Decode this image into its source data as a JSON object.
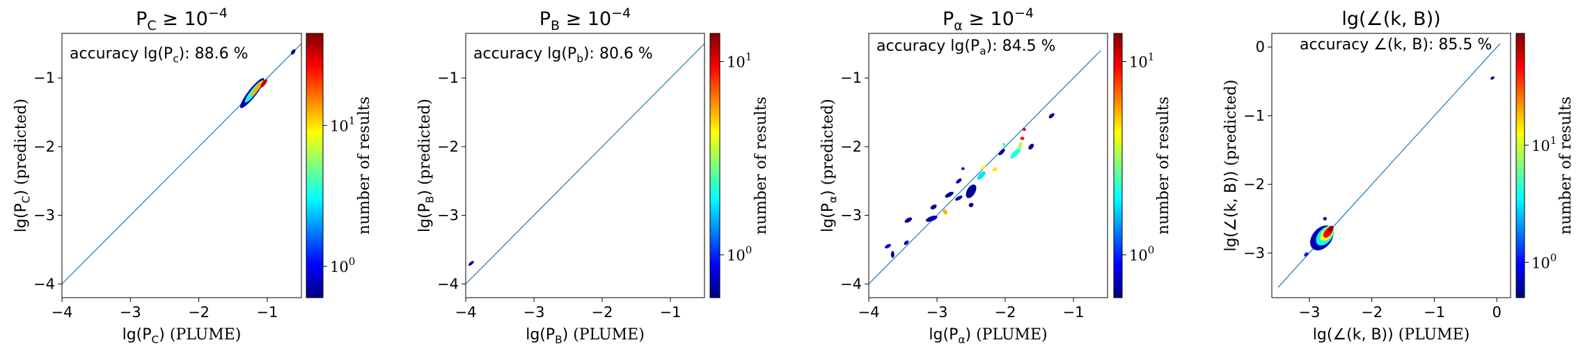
{
  "chart_data": [
    {
      "type": "heatmap",
      "title": "P_C ≥ 10^-4",
      "title_parts": {
        "base": "P",
        "sub": "C",
        "rel": " ≥ 10",
        "sup": "−4"
      },
      "xlabel_parts": {
        "pre": "lg(P",
        "sub": "C",
        "post": ")",
        "tail": " (PLUME)"
      },
      "ylabel_parts": {
        "pre": "lg(P",
        "sub": "C",
        "post": ")",
        "tail": " (predicted)"
      },
      "annotation_parts": {
        "pre": "accuracy lg(P",
        "sub": "c",
        "post": "): 88.6 %"
      },
      "xlim": [
        -4,
        -0.5
      ],
      "ylim": [
        -4.2,
        -0.35
      ],
      "xticks": [
        -4,
        -3,
        -2,
        -1
      ],
      "yticks": [
        -4,
        -3,
        -2,
        -1
      ],
      "diagonal": [
        [
          -4,
          -4
        ],
        [
          -0.5,
          -0.5
        ]
      ],
      "colorbar": {
        "label": "number of results",
        "scale": "log",
        "range": [
          0.6,
          45
        ],
        "ticks": [
          {
            "value": 1,
            "base": "10",
            "exp": "0"
          },
          {
            "value": 10,
            "base": "10",
            "exp": "1"
          }
        ]
      },
      "blobs": [
        {
          "x": -1.22,
          "y": -1.22,
          "w": 0.55,
          "h": 0.12,
          "angle": 52,
          "level": 0.05
        },
        {
          "x": -1.2,
          "y": -1.2,
          "w": 0.4,
          "h": 0.08,
          "angle": 52,
          "level": 0.4
        },
        {
          "x": -1.15,
          "y": -1.15,
          "w": 0.3,
          "h": 0.06,
          "angle": 52,
          "level": 0.7
        },
        {
          "x": -1.05,
          "y": -1.08,
          "w": 0.15,
          "h": 0.05,
          "angle": 52,
          "level": 0.95
        },
        {
          "x": -0.62,
          "y": -0.62,
          "w": 0.09,
          "h": 0.05,
          "angle": 52,
          "level": 0.02
        }
      ]
    },
    {
      "type": "heatmap",
      "title": "P_B ≥ 10^-4",
      "title_parts": {
        "base": "P",
        "sub": "B",
        "rel": " ≥ 10",
        "sup": "−4"
      },
      "xlabel_parts": {
        "pre": "lg(P",
        "sub": "B",
        "post": ")",
        "tail": " (PLUME)"
      },
      "ylabel_parts": {
        "pre": "lg(P",
        "sub": "B",
        "post": ")",
        "tail": " (predicted)"
      },
      "annotation_parts": {
        "pre": "accuracy lg(P",
        "sub": "b",
        "post": "): 80.6 %"
      },
      "xlim": [
        -4,
        -0.5
      ],
      "ylim": [
        -4.2,
        -0.35
      ],
      "xticks": [
        -4,
        -3,
        -2,
        -1
      ],
      "yticks": [
        -4,
        -3,
        -2,
        -1
      ],
      "diagonal": [
        [
          -4,
          -4
        ],
        [
          -0.5,
          -0.5
        ]
      ],
      "colorbar": {
        "label": "number of results",
        "scale": "log",
        "range": [
          0.6,
          14
        ],
        "ticks": [
          {
            "value": 1,
            "base": "10",
            "exp": "0"
          },
          {
            "value": 10,
            "base": "10",
            "exp": "1"
          }
        ]
      },
      "blobs": [
        {
          "x": -3.92,
          "y": -3.7,
          "w": 0.1,
          "h": 0.04,
          "angle": 40,
          "level": 0.02
        }
      ]
    },
    {
      "type": "heatmap",
      "title": "P_α ≥ 10^-4",
      "title_parts": {
        "base": "P",
        "sub": "α",
        "rel": " ≥ 10",
        "sup": "−4"
      },
      "xlabel_parts": {
        "pre": "lg(P",
        "sub": "α",
        "post": ")",
        "tail": " (PLUME)"
      },
      "ylabel_parts": {
        "pre": "lg(P",
        "sub": "α",
        "post": ")",
        "tail": " (predicted)"
      },
      "annotation_parts": {
        "pre": "accuracy lg(P",
        "sub": "a",
        "post": "): 84.5 %"
      },
      "xlim": [
        -4,
        -0.5
      ],
      "ylim": [
        -4.2,
        -0.35
      ],
      "xticks": [
        -4,
        -3,
        -2,
        -1
      ],
      "yticks": [
        -4,
        -3,
        -2,
        -1
      ],
      "diagonal": [
        [
          -4,
          -4
        ],
        [
          -0.6,
          -0.6
        ]
      ],
      "colorbar": {
        "label": "number of results",
        "scale": "log",
        "range": [
          0.6,
          14
        ],
        "ticks": [
          {
            "value": 1,
            "base": "10",
            "exp": "0"
          },
          {
            "value": 10,
            "base": "10",
            "exp": "1"
          }
        ]
      },
      "blobs": [
        {
          "x": -3.72,
          "y": -3.45,
          "w": 0.1,
          "h": 0.05,
          "angle": 30,
          "level": 0.1
        },
        {
          "x": -3.45,
          "y": -3.4,
          "w": 0.08,
          "h": 0.05,
          "angle": 40,
          "level": 0.05
        },
        {
          "x": -3.65,
          "y": -3.57,
          "w": 0.05,
          "h": 0.1,
          "angle": 0,
          "level": 0.02
        },
        {
          "x": -3.42,
          "y": -3.07,
          "w": 0.12,
          "h": 0.06,
          "angle": 30,
          "level": 0.02
        },
        {
          "x": -3.08,
          "y": -3.05,
          "w": 0.18,
          "h": 0.07,
          "angle": 20,
          "level": 0.05
        },
        {
          "x": -3.05,
          "y": -2.88,
          "w": 0.1,
          "h": 0.06,
          "angle": 30,
          "level": 0.02
        },
        {
          "x": -2.88,
          "y": -2.95,
          "w": 0.06,
          "h": 0.08,
          "angle": 30,
          "level": 0.7
        },
        {
          "x": -2.82,
          "y": -2.7,
          "w": 0.14,
          "h": 0.06,
          "angle": 30,
          "level": 0.02
        },
        {
          "x": -2.68,
          "y": -2.75,
          "w": 0.12,
          "h": 0.05,
          "angle": 30,
          "level": 0.02
        },
        {
          "x": -2.68,
          "y": -2.5,
          "w": 0.1,
          "h": 0.05,
          "angle": 40,
          "level": 0.05
        },
        {
          "x": -2.5,
          "y": -2.65,
          "w": 0.22,
          "h": 0.12,
          "angle": 60,
          "level": 0.02
        },
        {
          "x": -2.5,
          "y": -2.85,
          "w": 0.07,
          "h": 0.06,
          "angle": 30,
          "level": 0.02
        },
        {
          "x": -2.62,
          "y": -2.32,
          "w": 0.05,
          "h": 0.04,
          "angle": 0,
          "level": 0.02
        },
        {
          "x": -2.35,
          "y": -2.42,
          "w": 0.16,
          "h": 0.07,
          "angle": 45,
          "level": 0.35
        },
        {
          "x": -2.32,
          "y": -2.3,
          "w": 0.1,
          "h": 0.04,
          "angle": 40,
          "level": 0.6
        },
        {
          "x": -2.15,
          "y": -2.33,
          "w": 0.08,
          "h": 0.05,
          "angle": 30,
          "level": 0.65
        },
        {
          "x": -2.05,
          "y": -2.08,
          "w": 0.12,
          "h": 0.05,
          "angle": 45,
          "level": 0.02
        },
        {
          "x": -2.02,
          "y": -1.97,
          "w": 0.05,
          "h": 0.05,
          "angle": 0,
          "level": 0.45
        },
        {
          "x": -1.85,
          "y": -2.1,
          "w": 0.2,
          "h": 0.07,
          "angle": 45,
          "level": 0.4
        },
        {
          "x": -1.78,
          "y": -1.98,
          "w": 0.1,
          "h": 0.06,
          "angle": 80,
          "level": 0.55
        },
        {
          "x": -1.75,
          "y": -1.88,
          "w": 0.06,
          "h": 0.05,
          "angle": 0,
          "level": 0.85
        },
        {
          "x": -1.72,
          "y": -1.75,
          "w": 0.05,
          "h": 0.04,
          "angle": 0,
          "level": 0.95
        },
        {
          "x": -1.62,
          "y": -2.0,
          "w": 0.1,
          "h": 0.06,
          "angle": 50,
          "level": 0.02
        },
        {
          "x": -1.32,
          "y": -1.55,
          "w": 0.1,
          "h": 0.05,
          "angle": 40,
          "level": 0.02
        }
      ]
    },
    {
      "type": "heatmap",
      "title": "lg(∠(k,B))",
      "title_parts": {
        "text": "lg(∠(k, B))"
      },
      "xlabel_parts": {
        "pre": "lg(∠(k, B))",
        "sub": "",
        "post": "",
        "tail": " (PLUME)"
      },
      "ylabel_parts": {
        "pre": "lg(∠(k, B))",
        "sub": "",
        "post": "",
        "tail": " (predicted)"
      },
      "annotation_parts": {
        "pre": "accuracy ∠(k, B): 85.5 %",
        "sub": "",
        "post": ""
      },
      "xlim": [
        -3.6,
        0.22
      ],
      "ylim": [
        -3.65,
        0.2
      ],
      "xticks": [
        -3,
        -2,
        -1,
        0
      ],
      "yticks": [
        -3,
        -2,
        -1,
        0
      ],
      "diagonal": [
        [
          -3.5,
          -3.5
        ],
        [
          0.05,
          0.05
        ]
      ],
      "colorbar": {
        "label": "number of results",
        "scale": "log",
        "range": [
          0.5,
          90
        ],
        "ticks": [
          {
            "value": 1,
            "base": "10",
            "exp": "0"
          },
          {
            "value": 10,
            "base": "10",
            "exp": "1"
          }
        ]
      },
      "blobs": [
        {
          "x": -2.8,
          "y": -2.78,
          "w": 0.45,
          "h": 0.28,
          "angle": 50,
          "level": 0.05
        },
        {
          "x": -2.75,
          "y": -2.75,
          "w": 0.36,
          "h": 0.2,
          "angle": 50,
          "level": 0.38
        },
        {
          "x": -2.72,
          "y": -2.72,
          "w": 0.28,
          "h": 0.14,
          "angle": 50,
          "level": 0.62
        },
        {
          "x": -2.7,
          "y": -2.7,
          "w": 0.2,
          "h": 0.1,
          "angle": 50,
          "level": 0.88
        },
        {
          "x": -2.66,
          "y": -2.65,
          "w": 0.12,
          "h": 0.07,
          "angle": 50,
          "level": 0.98
        },
        {
          "x": -2.75,
          "y": -2.5,
          "w": 0.06,
          "h": 0.05,
          "angle": 0,
          "level": 0.02
        },
        {
          "x": -3.05,
          "y": -3.02,
          "w": 0.08,
          "h": 0.05,
          "angle": 45,
          "level": 0.15
        },
        {
          "x": -0.07,
          "y": -0.45,
          "w": 0.07,
          "h": 0.04,
          "angle": 30,
          "level": 0.02
        }
      ]
    }
  ],
  "colors": {
    "diagonal": "#1f77b4",
    "colormap": [
      "#00007f",
      "#0000ff",
      "#007fff",
      "#00ffff",
      "#7fff7f",
      "#ffff00",
      "#ff7f00",
      "#ff0000",
      "#7f0000"
    ]
  }
}
